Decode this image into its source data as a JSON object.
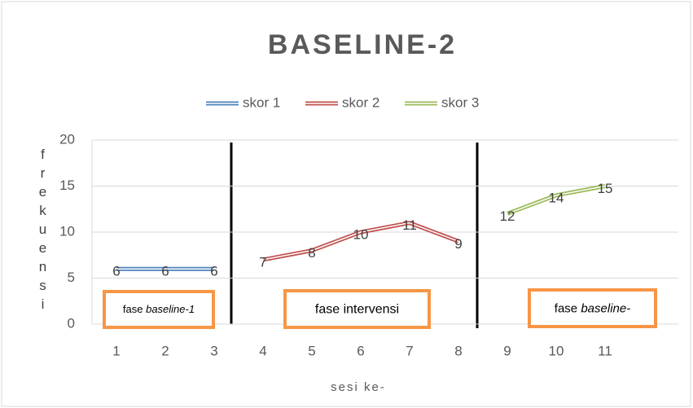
{
  "chart_data": {
    "type": "line",
    "title": "BASELINE-2",
    "x_label": "sesi ke-",
    "y_label": "frekuensi",
    "categories": [
      1,
      2,
      3,
      4,
      5,
      6,
      7,
      8,
      9,
      10,
      11,
      null
    ],
    "series": [
      {
        "name": "skor 1",
        "color": "#4f81bd",
        "values": [
          6,
          6,
          6,
          null,
          null,
          null,
          null,
          null,
          null,
          null,
          null,
          null
        ]
      },
      {
        "name": "skor 2",
        "color": "#c0504d",
        "values": [
          null,
          null,
          null,
          7,
          8,
          10,
          11,
          9,
          null,
          null,
          null,
          null
        ]
      },
      {
        "name": "skor 3",
        "color": "#9bbb59",
        "values": [
          null,
          null,
          null,
          null,
          null,
          null,
          null,
          null,
          12,
          14,
          15,
          null
        ]
      }
    ],
    "ylim": [
      0,
      20
    ],
    "yticks": [
      0,
      5,
      10,
      15,
      20
    ],
    "grid": true,
    "legend": "top",
    "annotations": [
      [
        "fase ",
        "baseline-1"
      ],
      [
        "fase intervensi"
      ],
      [
        "fase ",
        "baseline-"
      ]
    ]
  }
}
